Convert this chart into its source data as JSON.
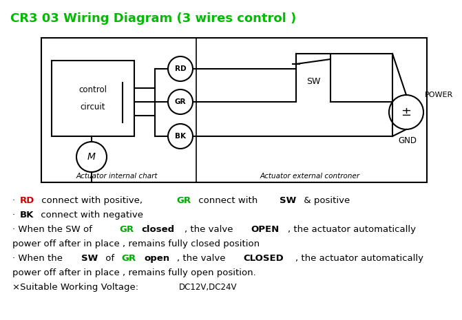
{
  "title": "CR3 03 Wiring Diagram (3 wires control )",
  "title_color": "#00bb00",
  "title_fontsize": 13,
  "bg_color": "#ffffff",
  "text_lines": [
    {
      "segments": [
        {
          "text": "· ",
          "color": "#000000",
          "bold": false
        },
        {
          "text": "RD",
          "color": "#cc0000",
          "bold": true
        },
        {
          "text": " connect with positive, ",
          "color": "#000000",
          "bold": false
        },
        {
          "text": "GR",
          "color": "#00aa00",
          "bold": true
        },
        {
          "text": " connect with ",
          "color": "#000000",
          "bold": false
        },
        {
          "text": "SW",
          "color": "#000000",
          "bold": true
        },
        {
          "text": " & positive",
          "color": "#000000",
          "bold": false
        }
      ]
    },
    {
      "segments": [
        {
          "text": "· ",
          "color": "#000000",
          "bold": false
        },
        {
          "text": "BK",
          "color": "#000000",
          "bold": true
        },
        {
          "text": " connect with negative",
          "color": "#000000",
          "bold": false
        }
      ]
    },
    {
      "segments": [
        {
          "text": "· When the SW of ",
          "color": "#000000",
          "bold": false
        },
        {
          "text": "GR",
          "color": "#00aa00",
          "bold": true
        },
        {
          "text": " ",
          "color": "#000000",
          "bold": false
        },
        {
          "text": "closed",
          "color": "#000000",
          "bold": true
        },
        {
          "text": ", the valve ",
          "color": "#000000",
          "bold": false
        },
        {
          "text": "OPEN",
          "color": "#000000",
          "bold": true
        },
        {
          "text": ", the actuator automatically",
          "color": "#000000",
          "bold": false
        }
      ]
    },
    {
      "segments": [
        {
          "text": "power off after in place , remains fully closed position",
          "color": "#000000",
          "bold": false
        }
      ]
    },
    {
      "segments": [
        {
          "text": "· When the ",
          "color": "#000000",
          "bold": false
        },
        {
          "text": "SW",
          "color": "#000000",
          "bold": true
        },
        {
          "text": " of ",
          "color": "#000000",
          "bold": false
        },
        {
          "text": "GR",
          "color": "#00aa00",
          "bold": true
        },
        {
          "text": " ",
          "color": "#000000",
          "bold": false
        },
        {
          "text": "open",
          "color": "#000000",
          "bold": true
        },
        {
          "text": ", the valve ",
          "color": "#000000",
          "bold": false
        },
        {
          "text": "CLOSED",
          "color": "#000000",
          "bold": true
        },
        {
          "text": ", the actuator automatically",
          "color": "#000000",
          "bold": false
        }
      ]
    },
    {
      "segments": [
        {
          "text": "power off after in place , remains fully open position.",
          "color": "#000000",
          "bold": false
        }
      ]
    },
    {
      "segments": [
        {
          "text": "×Suitable Working Voltage: ",
          "color": "#000000",
          "bold": false
        },
        {
          "text": "DC12V,DC24V",
          "color": "#000000",
          "bold": false,
          "small": true
        }
      ]
    }
  ]
}
